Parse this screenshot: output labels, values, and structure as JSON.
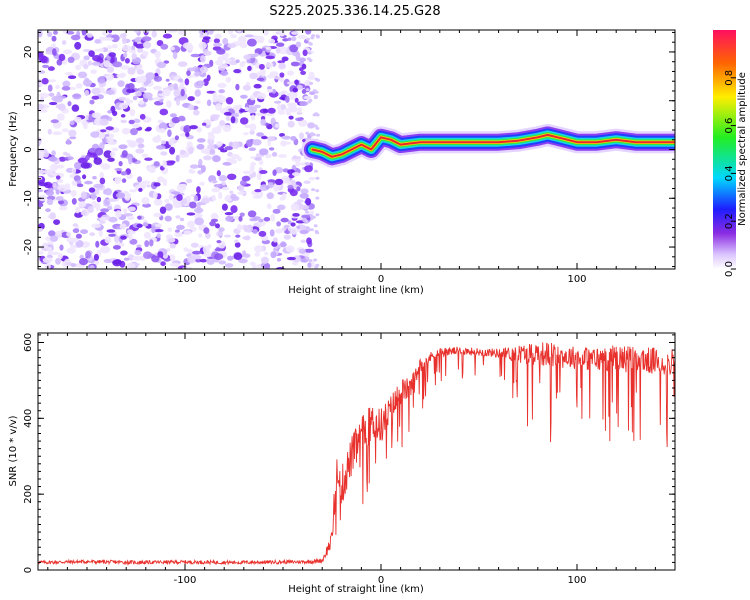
{
  "title": "S225.2025.336.14.25.G28",
  "colors": {
    "background": "#ffffff",
    "axis": "#000000",
    "snr_line": "#e8312c",
    "noise": "#7a2cf0",
    "signal_core": "#e8282c"
  },
  "chart_data": [
    {
      "type": "heatmap",
      "name": "spectrogram",
      "title": "S225.2025.336.14.25.G28",
      "xlabel": "Height of straight line (km)",
      "ylabel": "Frequency (Hz)",
      "xlim": [
        -175,
        150
      ],
      "ylim": [
        -24.5,
        24.5
      ],
      "xticks": [
        -100,
        0,
        100
      ],
      "xtick_labels": [
        "-100",
        "0",
        "100"
      ],
      "yticks": [
        -20,
        -10,
        0,
        10,
        20
      ],
      "ytick_labels": [
        "-20",
        "-10",
        "0",
        "10",
        "20"
      ],
      "noise_region_x": [
        -175,
        -35
      ],
      "signal_onset_x": -35,
      "signal_ridge": {
        "x": [
          -35,
          -30,
          -25,
          -20,
          -15,
          -10,
          -5,
          0,
          5,
          10,
          20,
          30,
          40,
          60,
          70,
          80,
          85,
          90,
          95,
          100,
          110,
          120,
          130,
          140,
          150
        ],
        "freq_hz": [
          0.0,
          -0.5,
          -1.5,
          -1.0,
          0.0,
          1.0,
          0.0,
          2.5,
          2.0,
          1.0,
          1.5,
          1.5,
          1.5,
          1.5,
          1.8,
          2.5,
          3.0,
          2.5,
          2.0,
          1.5,
          1.5,
          2.0,
          1.5,
          1.5,
          1.5
        ]
      },
      "colorbar": {
        "label": "Normalized spectral amplitude",
        "range": [
          0.0,
          1.0
        ],
        "ticks": [
          0.0,
          0.2,
          0.4,
          0.6,
          0.8
        ],
        "tick_labels": [
          "0.0",
          "0.2",
          "0.4",
          "0.6",
          "0.8"
        ]
      }
    },
    {
      "type": "line",
      "name": "snr",
      "xlabel": "Height of straight line (km)",
      "ylabel": "SNR (10 * v/v)",
      "xlim": [
        -175,
        150
      ],
      "ylim": [
        0,
        625
      ],
      "xticks": [
        -100,
        0,
        100
      ],
      "xtick_labels": [
        "-100",
        "0",
        "100"
      ],
      "yticks": [
        0,
        200,
        400,
        600
      ],
      "ytick_labels": [
        "0",
        "200",
        "400",
        "600"
      ],
      "series": [
        {
          "name": "SNR",
          "x": [
            -175,
            -150,
            -125,
            -100,
            -75,
            -50,
            -35,
            -30,
            -25,
            -23,
            -20,
            -15,
            -10,
            -5,
            0,
            5,
            10,
            15,
            20,
            25,
            30,
            40,
            50,
            60,
            70,
            80,
            90,
            100,
            110,
            120,
            130,
            140,
            150
          ],
          "values": [
            20,
            22,
            20,
            21,
            20,
            21,
            22,
            25,
            80,
            250,
            220,
            300,
            350,
            390,
            380,
            420,
            470,
            480,
            540,
            560,
            575,
            578,
            575,
            572,
            570,
            572,
            565,
            560,
            555,
            560,
            555,
            550,
            548
          ],
          "noise_amplitude": [
            8,
            8,
            8,
            8,
            8,
            8,
            8,
            10,
            40,
            90,
            90,
            90,
            90,
            80,
            80,
            70,
            60,
            45,
            30,
            25,
            20,
            18,
            18,
            20,
            40,
            55,
            55,
            50,
            55,
            60,
            60,
            60,
            55
          ]
        }
      ]
    }
  ]
}
